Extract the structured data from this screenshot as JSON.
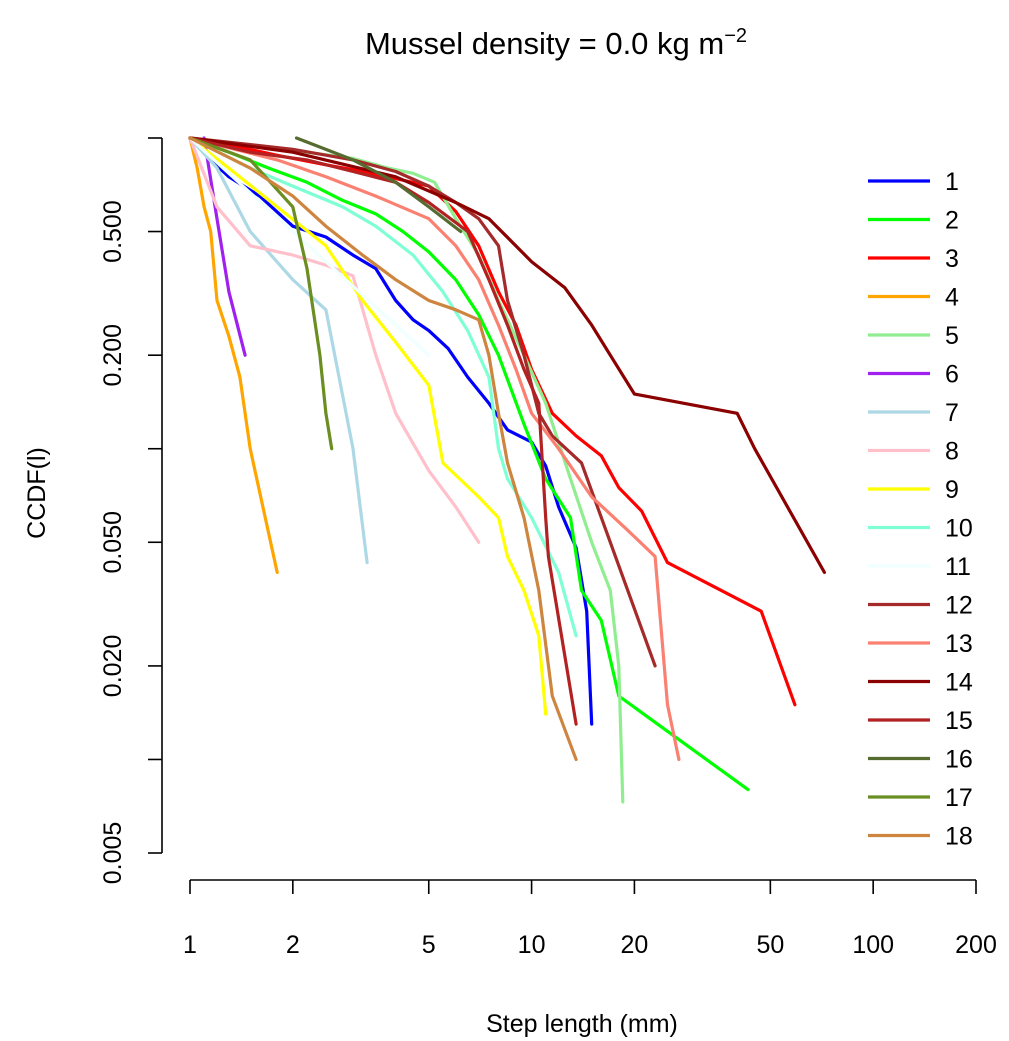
{
  "chart_data": {
    "type": "line",
    "title": "Mussel density = 0.0 kg m",
    "title_unit_exponent": "−2",
    "xlabel": "Step length (mm)",
    "ylabel": "CCDF(l)",
    "x_scale": "log",
    "y_scale": "log",
    "xlim": [
      1,
      200
    ],
    "ylim": [
      0.005,
      1
    ],
    "x_ticks": [
      1,
      2,
      5,
      10,
      20,
      50,
      100,
      200
    ],
    "x_tick_labels": [
      "1",
      "2",
      "5",
      "10",
      "20",
      "50",
      "100",
      "200"
    ],
    "y_ticks": [
      0.005,
      0.01,
      0.02,
      0.05,
      0.1,
      0.2,
      0.5,
      1
    ],
    "y_tick_labels": [
      "0.005",
      "",
      "0.020",
      "0.050",
      "",
      "0.200",
      "0.500",
      ""
    ],
    "grid": false,
    "legend_position": "right",
    "series": [
      {
        "name": "1",
        "color": "#0000FF",
        "x": [
          1.0,
          1.15,
          1.3,
          1.6,
          2.0,
          2.5,
          3.0,
          3.5,
          4.0,
          4.5,
          5.0,
          5.7,
          6.5,
          7.5,
          8.5,
          10.0,
          11.0,
          12.0,
          13.5,
          14.5,
          15.0
        ],
        "y": [
          1.0,
          0.85,
          0.75,
          0.65,
          0.52,
          0.48,
          0.42,
          0.38,
          0.3,
          0.26,
          0.24,
          0.21,
          0.17,
          0.14,
          0.115,
          0.105,
          0.088,
          0.065,
          0.048,
          0.03,
          0.013
        ]
      },
      {
        "name": "2",
        "color": "#00FF00",
        "x": [
          1.0,
          1.3,
          1.7,
          2.2,
          2.8,
          3.5,
          4.2,
          5.0,
          6.0,
          7.0,
          8.0,
          9.5,
          11.0,
          13.0,
          14.0,
          16.0,
          18.0,
          43.0
        ],
        "y": [
          1.0,
          0.9,
          0.8,
          0.72,
          0.63,
          0.57,
          0.5,
          0.43,
          0.35,
          0.27,
          0.2,
          0.12,
          0.08,
          0.06,
          0.035,
          0.028,
          0.016,
          0.008
        ]
      },
      {
        "name": "3",
        "color": "#FF0000",
        "x": [
          1.0,
          1.3,
          1.8,
          2.5,
          3.2,
          4.0,
          5.0,
          6.0,
          7.0,
          8.0,
          9.0,
          10.0,
          11.5,
          13.5,
          16.0,
          18.0,
          21.0,
          25.0,
          47.0,
          59.0
        ],
        "y": [
          1.0,
          0.95,
          0.88,
          0.82,
          0.78,
          0.74,
          0.7,
          0.58,
          0.45,
          0.32,
          0.25,
          0.18,
          0.13,
          0.11,
          0.095,
          0.075,
          0.063,
          0.043,
          0.03,
          0.015
        ]
      },
      {
        "name": "4",
        "color": "#FFA500",
        "x": [
          1.0,
          1.05,
          1.1,
          1.15,
          1.2,
          1.3,
          1.4,
          1.5,
          1.8
        ],
        "y": [
          1.0,
          0.8,
          0.6,
          0.5,
          0.3,
          0.23,
          0.17,
          0.1,
          0.04
        ]
      },
      {
        "name": "5",
        "color": "#90EE90",
        "x": [
          1.0,
          1.5,
          2.2,
          3.0,
          3.8,
          4.5,
          5.2,
          6.0,
          7.0,
          8.0,
          9.5,
          11.0,
          13.0,
          15.0,
          17.0,
          18.0,
          18.5
        ],
        "y": [
          1.0,
          0.95,
          0.9,
          0.86,
          0.8,
          0.77,
          0.72,
          0.55,
          0.42,
          0.3,
          0.2,
          0.14,
          0.08,
          0.05,
          0.035,
          0.02,
          0.0073
        ]
      },
      {
        "name": "6",
        "color": "#A020F0",
        "x": [
          1.1,
          1.2,
          1.3,
          1.45
        ],
        "y": [
          1.0,
          0.55,
          0.32,
          0.2
        ]
      },
      {
        "name": "7",
        "color": "#ADD8E6",
        "x": [
          1.0,
          1.2,
          1.5,
          2.0,
          2.5,
          3.0,
          3.3
        ],
        "y": [
          1.0,
          0.8,
          0.5,
          0.35,
          0.28,
          0.1,
          0.043
        ]
      },
      {
        "name": "8",
        "color": "#FFC0CB",
        "x": [
          1.0,
          1.2,
          1.5,
          2.0,
          2.5,
          3.0,
          3.5,
          4.0,
          5.0,
          6.0,
          7.0
        ],
        "y": [
          1.0,
          0.6,
          0.45,
          0.42,
          0.39,
          0.36,
          0.2,
          0.13,
          0.085,
          0.065,
          0.05
        ]
      },
      {
        "name": "9",
        "color": "#FFFF00",
        "x": [
          1.0,
          1.3,
          1.8,
          2.5,
          3.2,
          4.0,
          5.0,
          5.5,
          7.0,
          8.0,
          8.5,
          9.5,
          10.5,
          11.0
        ],
        "y": [
          1.0,
          0.8,
          0.6,
          0.45,
          0.3,
          0.22,
          0.16,
          0.09,
          0.07,
          0.06,
          0.045,
          0.035,
          0.025,
          0.014
        ]
      },
      {
        "name": "10",
        "color": "#7FFFD4",
        "x": [
          1.0,
          1.5,
          2.0,
          2.8,
          3.5,
          4.5,
          5.5,
          6.5,
          7.5,
          8.0,
          8.5,
          10.0,
          12.0,
          13.5
        ],
        "y": [
          1.0,
          0.8,
          0.7,
          0.6,
          0.52,
          0.42,
          0.32,
          0.24,
          0.17,
          0.1,
          0.08,
          0.06,
          0.04,
          0.025
        ]
      },
      {
        "name": "11",
        "color": "#F0FFFF",
        "x": [
          1.0,
          2.0,
          5.0
        ],
        "y": [
          1.0,
          0.5,
          0.2
        ]
      },
      {
        "name": "12",
        "color": "#A52A2A",
        "x": [
          1.0,
          2.0,
          3.0,
          4.0,
          5.0,
          6.0,
          7.0,
          8.0,
          8.5,
          9.5,
          10.5,
          11.5,
          14.0,
          17.0,
          23.0
        ],
        "y": [
          1.0,
          0.92,
          0.85,
          0.78,
          0.7,
          0.62,
          0.55,
          0.45,
          0.3,
          0.2,
          0.13,
          0.11,
          0.09,
          0.05,
          0.02
        ]
      },
      {
        "name": "13",
        "color": "#FA8072",
        "x": [
          1.0,
          1.8,
          2.5,
          3.5,
          5.0,
          6.0,
          7.0,
          8.0,
          9.0,
          10.0,
          12.0,
          15.0,
          19.0,
          23.0,
          25.0,
          27.0
        ],
        "y": [
          1.0,
          0.85,
          0.75,
          0.65,
          0.55,
          0.45,
          0.35,
          0.25,
          0.18,
          0.13,
          0.1,
          0.07,
          0.055,
          0.045,
          0.015,
          0.01
        ]
      },
      {
        "name": "14",
        "color": "#8B0000",
        "x": [
          1.0,
          2.0,
          4.0,
          6.0,
          7.5,
          10.0,
          12.5,
          15.0,
          17.0,
          20.0,
          40.0,
          45.0,
          72.0
        ],
        "y": [
          1.0,
          0.9,
          0.75,
          0.62,
          0.55,
          0.4,
          0.33,
          0.25,
          0.2,
          0.15,
          0.13,
          0.1,
          0.04
        ]
      },
      {
        "name": "15",
        "color": "#B22222",
        "x": [
          1.0,
          1.5,
          2.2,
          3.0,
          4.0,
          5.0,
          6.5,
          7.5,
          8.5,
          9.5,
          10.5,
          11.0,
          11.2,
          13.5
        ],
        "y": [
          1.0,
          0.9,
          0.85,
          0.78,
          0.72,
          0.62,
          0.5,
          0.35,
          0.25,
          0.18,
          0.14,
          0.06,
          0.045,
          0.013
        ]
      },
      {
        "name": "16",
        "color": "#556B2F",
        "x": [
          2.05,
          3.0,
          4.0,
          5.0,
          6.2
        ],
        "y": [
          1.0,
          0.85,
          0.72,
          0.6,
          0.5
        ]
      },
      {
        "name": "17",
        "color": "#6B8E23",
        "x": [
          1.0,
          1.5,
          2.0,
          2.2,
          2.4,
          2.5,
          2.6
        ],
        "y": [
          1.0,
          0.85,
          0.6,
          0.38,
          0.2,
          0.13,
          0.1
        ]
      },
      {
        "name": "18",
        "color": "#CD853F",
        "x": [
          1.0,
          1.5,
          2.0,
          2.5,
          3.2,
          4.0,
          5.0,
          6.0,
          7.0,
          7.5,
          8.0,
          8.5,
          9.5,
          10.5,
          11.5,
          13.5
        ],
        "y": [
          1.0,
          0.8,
          0.65,
          0.52,
          0.42,
          0.35,
          0.3,
          0.28,
          0.26,
          0.2,
          0.13,
          0.09,
          0.06,
          0.035,
          0.016,
          0.01
        ]
      }
    ]
  }
}
